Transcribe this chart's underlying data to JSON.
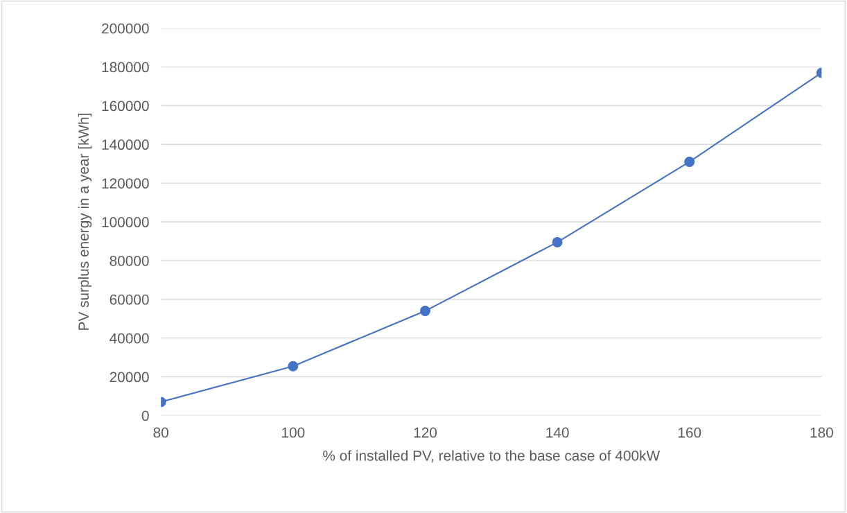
{
  "chart_data": {
    "type": "line",
    "xlabel": "% of installed PV, relative to the base case of 400kW",
    "ylabel": "PV surplus energy in a year [kWh]",
    "x": [
      80,
      100,
      120,
      140,
      160,
      180
    ],
    "series": [
      {
        "color": "#4472c4",
        "values": [
          7000,
          25500,
          54000,
          89500,
          131000,
          177000
        ]
      }
    ],
    "xlim": [
      80,
      180
    ],
    "xticks": [
      80,
      100,
      120,
      140,
      160,
      180
    ],
    "ylim": [
      0,
      200000
    ],
    "yticks": [
      0,
      20000,
      40000,
      60000,
      80000,
      100000,
      120000,
      140000,
      160000,
      180000,
      200000
    ],
    "grid": "y",
    "marker": "circle",
    "line_style": "solid"
  }
}
